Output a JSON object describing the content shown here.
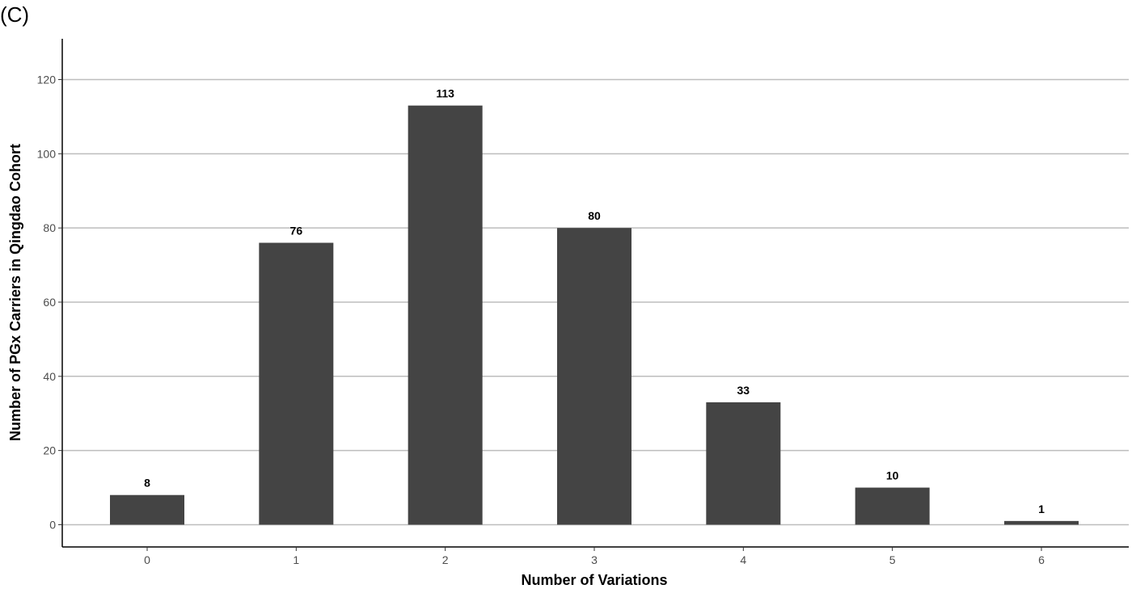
{
  "panel_label": "(C)",
  "chart_data": {
    "type": "bar",
    "categories": [
      "0",
      "1",
      "2",
      "3",
      "4",
      "5",
      "6"
    ],
    "values": [
      8,
      76,
      113,
      80,
      33,
      10,
      1
    ],
    "data_labels": [
      "8",
      "76",
      "113",
      "80",
      "33",
      "10",
      "1"
    ],
    "xlabel": "Number of Variations",
    "ylabel": "Number of PGx Carriers in Qingdao Cohort",
    "ylim": [
      -6,
      131
    ],
    "yticks": [
      0,
      20,
      40,
      60,
      80,
      100,
      120
    ],
    "grid": "horizontal major",
    "bar_color": "#444444",
    "legend": "none"
  }
}
